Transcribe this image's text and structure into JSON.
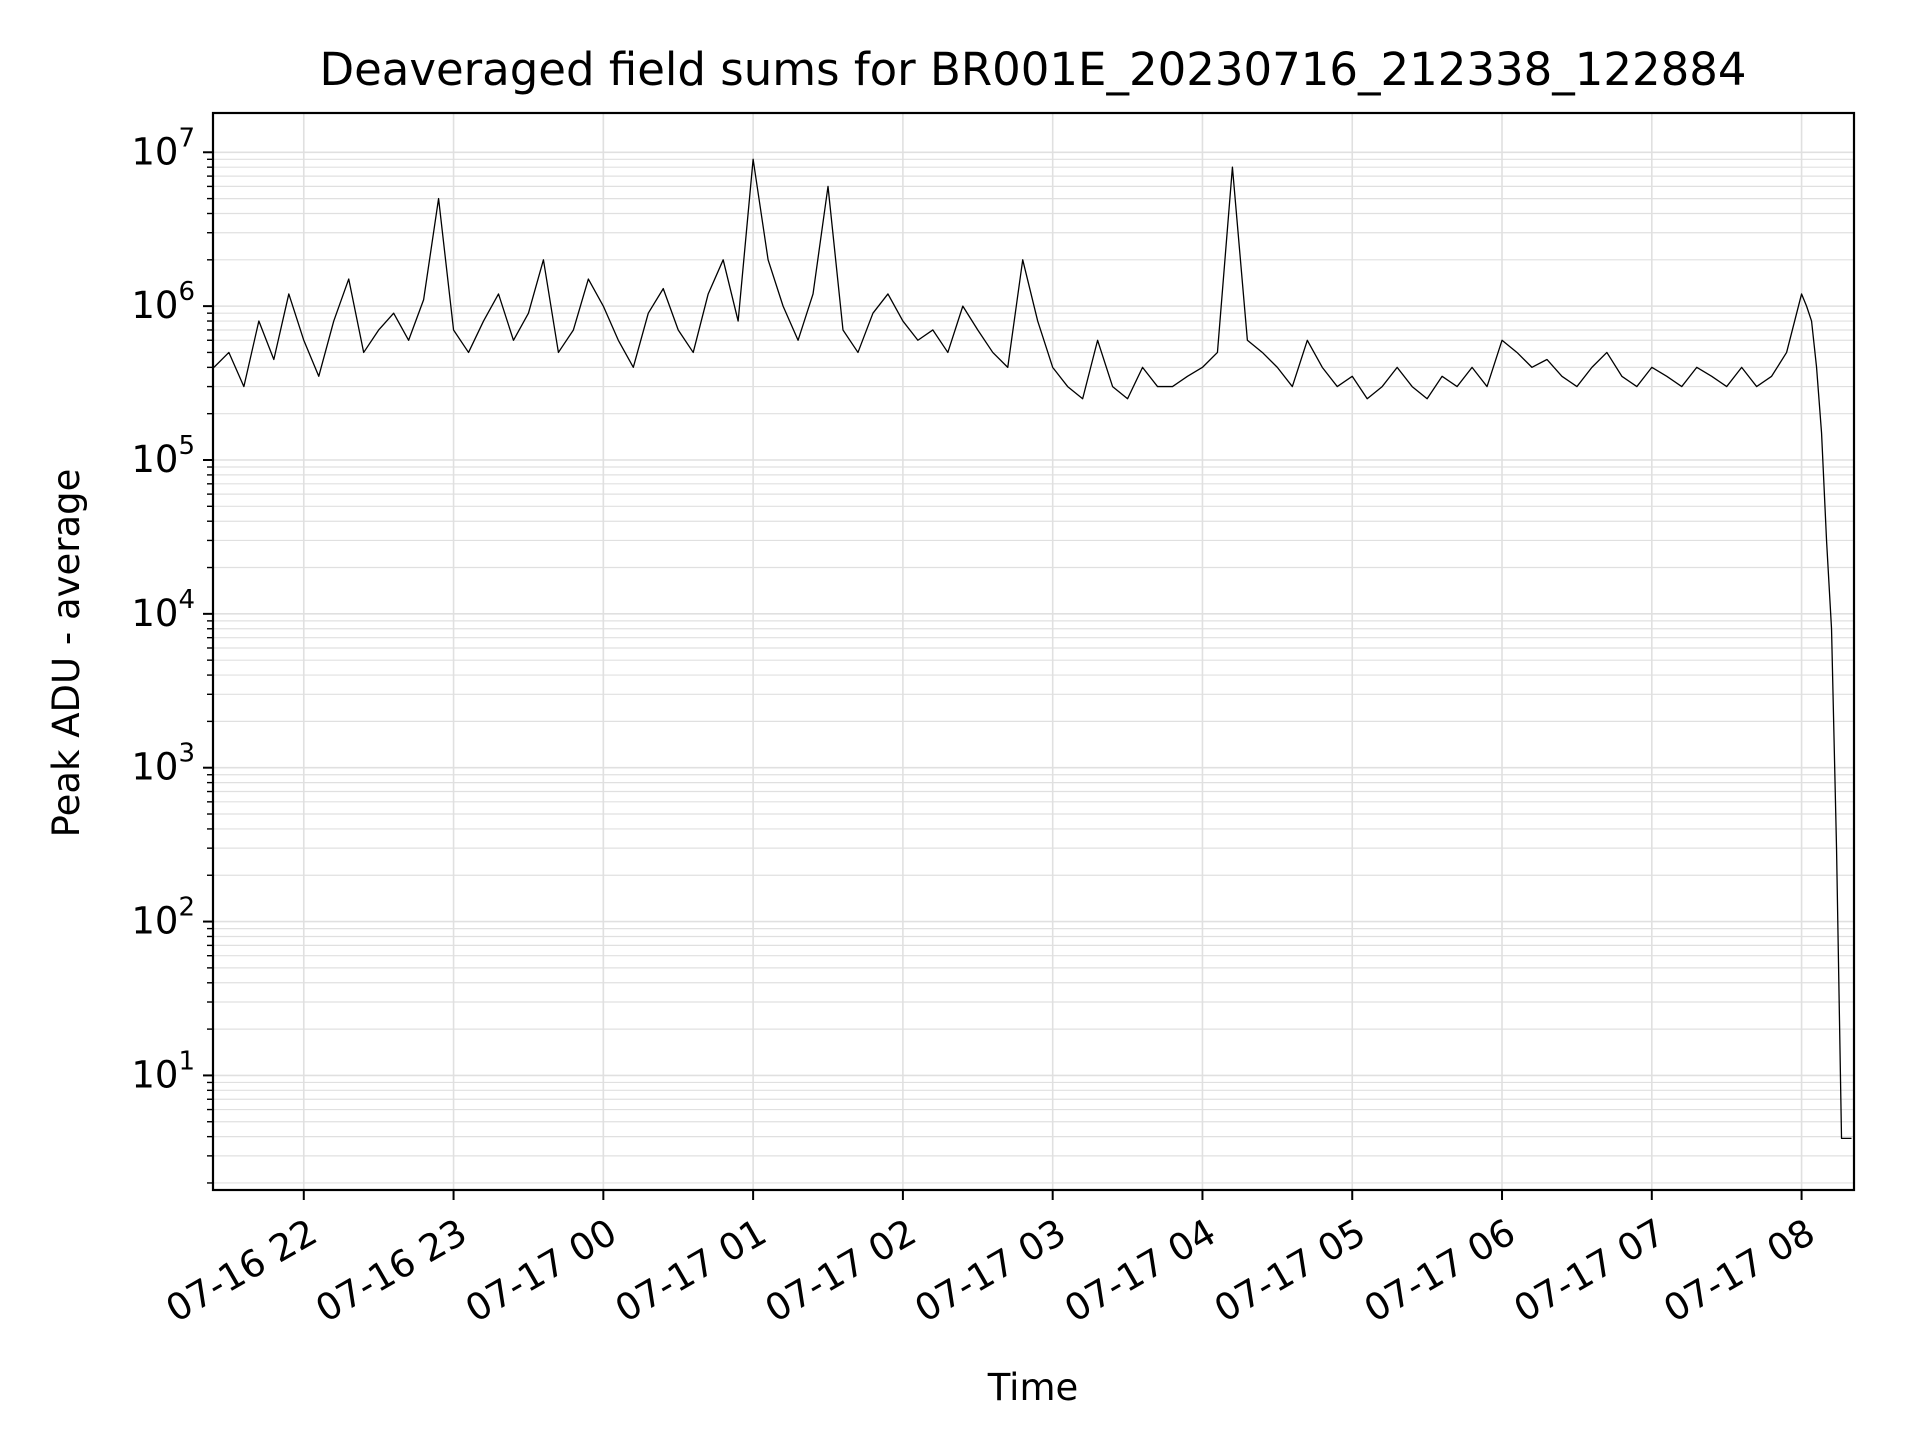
{
  "chart_data": {
    "type": "line",
    "title": "Deaveraged field sums for BR001E_20230716_212338_122884",
    "xlabel": "Time",
    "ylabel": "Peak ADU - average",
    "yscale": "log",
    "ylim": [
      1.8,
      18000000
    ],
    "xlim": [
      "2023-07-16T21:23:38",
      "2023-07-17T08:21:00"
    ],
    "grid": true,
    "line_color": "#000000",
    "grid_color": "#e0e0e0",
    "x_ticks": [
      {
        "time": "2023-07-16T22:00",
        "label": "07-16 22"
      },
      {
        "time": "2023-07-16T23:00",
        "label": "07-16 23"
      },
      {
        "time": "2023-07-17T00:00",
        "label": "07-17 00"
      },
      {
        "time": "2023-07-17T01:00",
        "label": "07-17 01"
      },
      {
        "time": "2023-07-17T02:00",
        "label": "07-17 02"
      },
      {
        "time": "2023-07-17T03:00",
        "label": "07-17 03"
      },
      {
        "time": "2023-07-17T04:00",
        "label": "07-17 04"
      },
      {
        "time": "2023-07-17T05:00",
        "label": "07-17 05"
      },
      {
        "time": "2023-07-17T06:00",
        "label": "07-17 06"
      },
      {
        "time": "2023-07-17T07:00",
        "label": "07-17 07"
      },
      {
        "time": "2023-07-17T08:00",
        "label": "07-17 08"
      }
    ],
    "y_ticks": [
      {
        "value": 10,
        "base": "10",
        "exp": "1"
      },
      {
        "value": 100,
        "base": "10",
        "exp": "2"
      },
      {
        "value": 1000,
        "base": "10",
        "exp": "3"
      },
      {
        "value": 10000,
        "base": "10",
        "exp": "4"
      },
      {
        "value": 100000,
        "base": "10",
        "exp": "5"
      },
      {
        "value": 1000000,
        "base": "10",
        "exp": "6"
      },
      {
        "value": 10000000,
        "base": "10",
        "exp": "7"
      }
    ],
    "series": [
      {
        "x": [
          "2023-07-16T21:24",
          "2023-07-16T21:30",
          "2023-07-16T21:36",
          "2023-07-16T21:42",
          "2023-07-16T21:48",
          "2023-07-16T21:54",
          "2023-07-16T22:00",
          "2023-07-16T22:06",
          "2023-07-16T22:12",
          "2023-07-16T22:18",
          "2023-07-16T22:24",
          "2023-07-16T22:30",
          "2023-07-16T22:36",
          "2023-07-16T22:42",
          "2023-07-16T22:48",
          "2023-07-16T22:54",
          "2023-07-16T23:00",
          "2023-07-16T23:06",
          "2023-07-16T23:12",
          "2023-07-16T23:18",
          "2023-07-16T23:24",
          "2023-07-16T23:30",
          "2023-07-16T23:36",
          "2023-07-16T23:42",
          "2023-07-16T23:48",
          "2023-07-16T23:54",
          "2023-07-17T00:00",
          "2023-07-17T00:06",
          "2023-07-17T00:12",
          "2023-07-17T00:18",
          "2023-07-17T00:24",
          "2023-07-17T00:30",
          "2023-07-17T00:36",
          "2023-07-17T00:42",
          "2023-07-17T00:48",
          "2023-07-17T00:54",
          "2023-07-17T01:00",
          "2023-07-17T01:06",
          "2023-07-17T01:12",
          "2023-07-17T01:18",
          "2023-07-17T01:24",
          "2023-07-17T01:30",
          "2023-07-17T01:36",
          "2023-07-17T01:42",
          "2023-07-17T01:48",
          "2023-07-17T01:54",
          "2023-07-17T02:00",
          "2023-07-17T02:06",
          "2023-07-17T02:12",
          "2023-07-17T02:18",
          "2023-07-17T02:24",
          "2023-07-17T02:30",
          "2023-07-17T02:36",
          "2023-07-17T02:42",
          "2023-07-17T02:48",
          "2023-07-17T02:54",
          "2023-07-17T03:00",
          "2023-07-17T03:06",
          "2023-07-17T03:12",
          "2023-07-17T03:18",
          "2023-07-17T03:24",
          "2023-07-17T03:30",
          "2023-07-17T03:36",
          "2023-07-17T03:42",
          "2023-07-17T03:48",
          "2023-07-17T03:54",
          "2023-07-17T04:00",
          "2023-07-17T04:06",
          "2023-07-17T04:12",
          "2023-07-17T04:18",
          "2023-07-17T04:24",
          "2023-07-17T04:30",
          "2023-07-17T04:36",
          "2023-07-17T04:42",
          "2023-07-17T04:48",
          "2023-07-17T04:54",
          "2023-07-17T05:00",
          "2023-07-17T05:06",
          "2023-07-17T05:12",
          "2023-07-17T05:18",
          "2023-07-17T05:24",
          "2023-07-17T05:30",
          "2023-07-17T05:36",
          "2023-07-17T05:42",
          "2023-07-17T05:48",
          "2023-07-17T05:54",
          "2023-07-17T06:00",
          "2023-07-17T06:06",
          "2023-07-17T06:12",
          "2023-07-17T06:18",
          "2023-07-17T06:24",
          "2023-07-17T06:30",
          "2023-07-17T06:36",
          "2023-07-17T06:42",
          "2023-07-17T06:48",
          "2023-07-17T06:54",
          "2023-07-17T07:00",
          "2023-07-17T07:06",
          "2023-07-17T07:12",
          "2023-07-17T07:18",
          "2023-07-17T07:24",
          "2023-07-17T07:30",
          "2023-07-17T07:36",
          "2023-07-17T07:42",
          "2023-07-17T07:48",
          "2023-07-17T07:54",
          "2023-07-17T08:00",
          "2023-07-17T08:02",
          "2023-07-17T08:04",
          "2023-07-17T08:06",
          "2023-07-17T08:08",
          "2023-07-17T08:10",
          "2023-07-17T08:12",
          "2023-07-17T08:14",
          "2023-07-17T08:16",
          "2023-07-17T08:18",
          "2023-07-17T08:20"
        ],
        "values": [
          400000,
          500000,
          300000,
          800000,
          450000,
          1200000,
          600000,
          350000,
          800000,
          1500000,
          500000,
          700000,
          900000,
          600000,
          1100000,
          5000000,
          700000,
          500000,
          800000,
          1200000,
          600000,
          900000,
          2000000,
          500000,
          700000,
          1500000,
          1000000,
          600000,
          400000,
          900000,
          1300000,
          700000,
          500000,
          1200000,
          2000000,
          800000,
          9000000,
          2000000,
          1000000,
          600000,
          1200000,
          6000000,
          700000,
          500000,
          900000,
          1200000,
          800000,
          600000,
          700000,
          500000,
          1000000,
          700000,
          500000,
          400000,
          2000000,
          800000,
          400000,
          300000,
          250000,
          600000,
          300000,
          250000,
          400000,
          300000,
          300000,
          350000,
          400000,
          500000,
          8000000,
          600000,
          500000,
          400000,
          300000,
          600000,
          400000,
          300000,
          350000,
          250000,
          300000,
          400000,
          300000,
          250000,
          350000,
          300000,
          400000,
          300000,
          600000,
          500000,
          400000,
          450000,
          350000,
          300000,
          400000,
          500000,
          350000,
          300000,
          400000,
          350000,
          300000,
          400000,
          350000,
          300000,
          400000,
          300000,
          350000,
          500000,
          1200000,
          1000000,
          800000,
          400000,
          150000,
          30000,
          8000,
          300,
          3.9,
          3.9,
          3.9
        ]
      }
    ]
  }
}
